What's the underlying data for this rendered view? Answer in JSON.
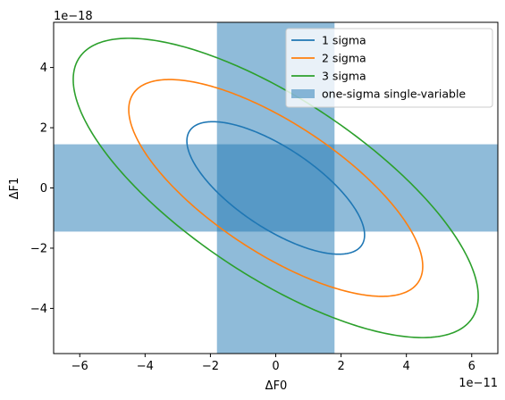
{
  "chart_data": {
    "type": "line",
    "title": "",
    "xlabel": "ΔF0",
    "ylabel": "ΔF1",
    "x_scale_label": "1e−11",
    "y_scale_label": "1e−18",
    "xlim": [
      -6.8,
      6.8
    ],
    "ylim": [
      -5.5,
      5.5
    ],
    "xticks": [
      -6,
      -4,
      -2,
      0,
      2,
      4,
      6
    ],
    "xtick_labels": [
      "−6",
      "−4",
      "−2",
      "0",
      "2",
      "4",
      "6"
    ],
    "yticks": [
      -4,
      -2,
      0,
      2,
      4
    ],
    "ytick_labels": [
      "−4",
      "−2",
      "0",
      "2",
      "4"
    ],
    "grid": false,
    "legend_position": "top-right",
    "series": [
      {
        "name": "1 sigma",
        "kind": "ellipse",
        "color": "#1f77b4",
        "center": [
          0,
          0
        ],
        "x_extreme": 2.72,
        "y_at_x_extreme": -1.56,
        "y_extreme": 2.2,
        "x_at_y_extreme": -1.6
      },
      {
        "name": "2 sigma",
        "kind": "ellipse",
        "color": "#ff7f0e",
        "center": [
          0,
          0
        ],
        "x_extreme": 4.5,
        "y_at_x_extreme": -2.6,
        "y_extreme": 3.6,
        "x_at_y_extreme": -3.6
      },
      {
        "name": "3 sigma",
        "kind": "ellipse",
        "color": "#2ca02c",
        "center": [
          0,
          0
        ],
        "x_extreme": 6.2,
        "y_at_x_extreme": -3.6,
        "y_extreme": 4.97,
        "x_at_y_extreme": -5.0
      }
    ],
    "bands": {
      "name": "one-sigma single-variable",
      "color": "#1f77b4",
      "alpha": 0.5,
      "x_range": [
        -1.8,
        1.8
      ],
      "y_range": [
        -1.45,
        1.45
      ]
    }
  }
}
